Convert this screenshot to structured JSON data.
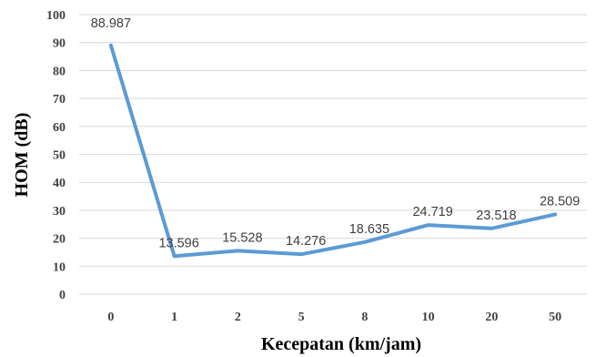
{
  "chart_data": {
    "type": "line",
    "title": "",
    "xlabel": "Kecepatan (km/jam)",
    "ylabel": "HOM (dB)",
    "categories": [
      "0",
      "1",
      "2",
      "5",
      "8",
      "10",
      "20",
      "50"
    ],
    "series": [
      {
        "values": [
          88.987,
          13.596,
          15.528,
          14.276,
          18.635,
          24.719,
          23.518,
          28.509
        ],
        "labels": [
          "88.987",
          "13.596",
          "15.528",
          "14.276",
          "18.635",
          "24.719",
          "23.518",
          "28.509"
        ],
        "color": "#5b9bd5"
      }
    ],
    "ylim": [
      0,
      100
    ],
    "yticks": [
      "0",
      "10",
      "20",
      "30",
      "40",
      "50",
      "60",
      "70",
      "80",
      "90",
      "100"
    ],
    "grid": true,
    "legend": "none"
  }
}
